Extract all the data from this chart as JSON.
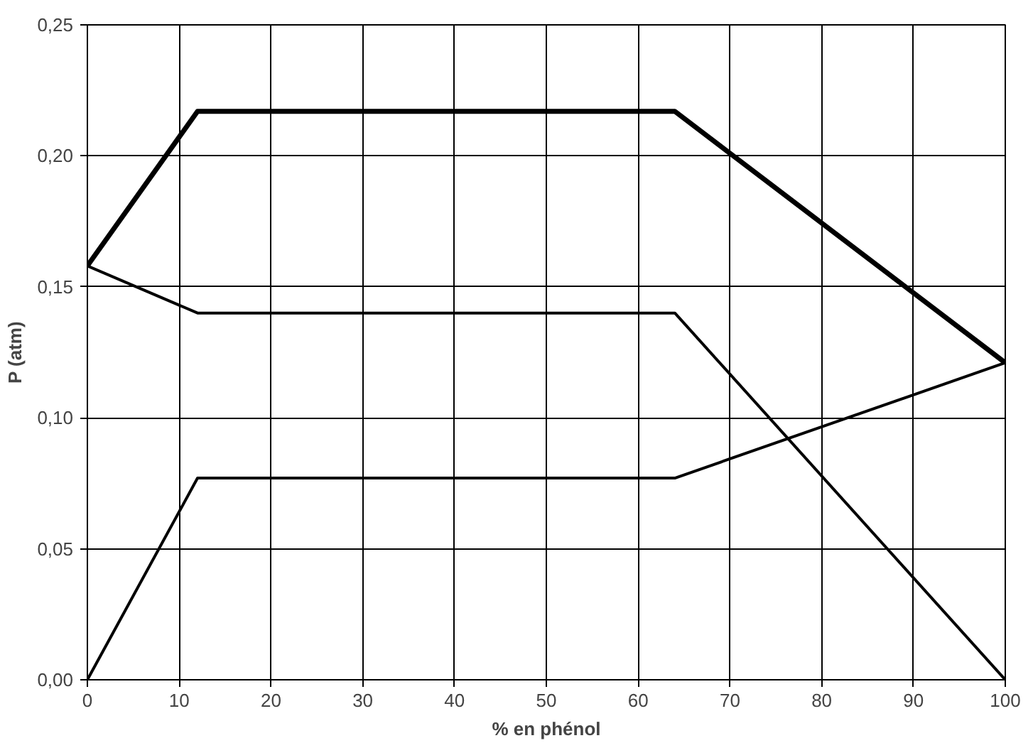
{
  "chart_data": {
    "type": "line",
    "xlabel": "% en phénol",
    "ylabel": "P (atm)",
    "series": [
      {
        "color": "#000000",
        "x": [
          0,
          12,
          64,
          100
        ],
        "values": [
          0.158,
          0.217,
          0.217,
          0.121
        ]
      },
      {
        "color": "#000000",
        "x": [
          0,
          12,
          64,
          100
        ],
        "values": [
          0.158,
          0.14,
          0.14,
          0
        ]
      },
      {
        "color": "#000000",
        "x": [
          0,
          12,
          64,
          100
        ],
        "values": [
          0,
          0.077,
          0.077,
          0.121
        ]
      }
    ],
    "xlim": [
      0,
      100
    ],
    "xticks": [
      0,
      10,
      20,
      30,
      40,
      50,
      60,
      70,
      80,
      90,
      100
    ],
    "ylim": [
      0,
      0.25
    ],
    "yticks": [
      {
        "value": 0,
        "label": "0,00"
      },
      {
        "value": 0.05,
        "label": "0,05"
      },
      {
        "value": 0.1,
        "label": "0,10"
      },
      {
        "value": 0.15,
        "label": "0,15"
      },
      {
        "value": 0.2,
        "label": "0,20"
      },
      {
        "value": 0.25,
        "label": "0,25"
      }
    ],
    "grid": true,
    "marker": "none",
    "line_style": "solid"
  }
}
